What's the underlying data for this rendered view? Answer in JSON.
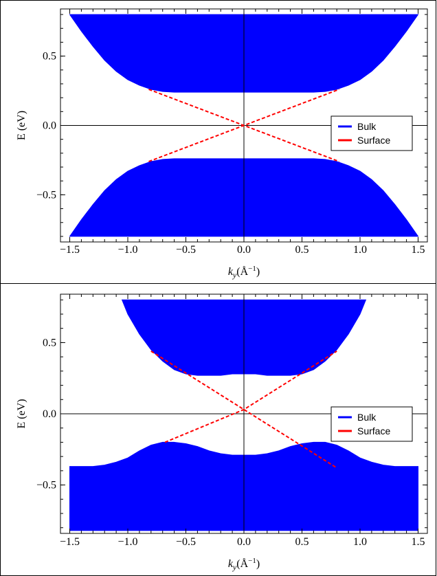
{
  "chart_data": [
    {
      "type": "area",
      "xlabel_main": "k",
      "xlabel_sub": "y",
      "xlabel_unit_open": "(Å",
      "xlabel_unit_exp": "−1",
      "xlabel_unit_close": ")",
      "ylabel": "E (eV)",
      "xlim": [
        -1.58,
        1.58
      ],
      "ylim": [
        -0.84,
        0.84
      ],
      "xticks": [
        -1.5,
        -1.0,
        -0.5,
        0.0,
        0.5,
        1.0,
        1.5
      ],
      "xtick_labels": [
        "−1.5",
        "−1.0",
        "−0.5",
        "0.0",
        "0.5",
        "1.0",
        "1.5"
      ],
      "yticks": [
        -0.5,
        0.0,
        0.5
      ],
      "ytick_labels": [
        "−0.5",
        "0.0",
        "0.5"
      ],
      "legend": {
        "position": "right",
        "entries": [
          {
            "label": "Bulk",
            "color": "#0000ff"
          },
          {
            "label": "Surface",
            "color": "#ff0000"
          }
        ]
      },
      "series": [
        {
          "name": "Bulk",
          "color": "#0000ff",
          "style": "filled",
          "x": [
            -1.5,
            -1.4,
            -1.3,
            -1.2,
            -1.1,
            -1.0,
            -0.9,
            -0.8,
            -0.7,
            -0.6,
            -0.5,
            -0.4,
            -0.3,
            -0.2,
            -0.1,
            0.0,
            0.1,
            0.2,
            0.3,
            0.4,
            0.5,
            0.6,
            0.7,
            0.8,
            0.9,
            1.0,
            1.1,
            1.2,
            1.3,
            1.4,
            1.5
          ],
          "upper_top": [
            0.8,
            0.8,
            0.8,
            0.8,
            0.8,
            0.8,
            0.8,
            0.8,
            0.8,
            0.8,
            0.8,
            0.8,
            0.8,
            0.8,
            0.8,
            0.8,
            0.8,
            0.8,
            0.8,
            0.8,
            0.8,
            0.8,
            0.8,
            0.8,
            0.8,
            0.8,
            0.8,
            0.8,
            0.8,
            0.8,
            0.8
          ],
          "upper_bottom": [
            0.8,
            0.68,
            0.57,
            0.47,
            0.39,
            0.33,
            0.29,
            0.26,
            0.245,
            0.24,
            0.24,
            0.24,
            0.24,
            0.24,
            0.24,
            0.24,
            0.24,
            0.24,
            0.24,
            0.24,
            0.24,
            0.24,
            0.245,
            0.26,
            0.29,
            0.33,
            0.39,
            0.47,
            0.57,
            0.68,
            0.8
          ],
          "lower_top": [
            -0.8,
            -0.68,
            -0.57,
            -0.47,
            -0.39,
            -0.33,
            -0.29,
            -0.26,
            -0.245,
            -0.24,
            -0.24,
            -0.24,
            -0.24,
            -0.24,
            -0.24,
            -0.24,
            -0.24,
            -0.24,
            -0.24,
            -0.24,
            -0.24,
            -0.24,
            -0.245,
            -0.26,
            -0.29,
            -0.33,
            -0.39,
            -0.47,
            -0.57,
            -0.68,
            -0.8
          ],
          "lower_bottom": [
            -0.8,
            -0.8,
            -0.8,
            -0.8,
            -0.8,
            -0.8,
            -0.8,
            -0.8,
            -0.8,
            -0.8,
            -0.8,
            -0.8,
            -0.8,
            -0.8,
            -0.8,
            -0.8,
            -0.8,
            -0.8,
            -0.8,
            -0.8,
            -0.8,
            -0.8,
            -0.8,
            -0.8,
            -0.8,
            -0.8,
            -0.8,
            -0.8,
            -0.8,
            -0.8,
            -0.8
          ]
        },
        {
          "name": "Surface",
          "color": "#ff0000",
          "style": "dashed",
          "lines": [
            {
              "x": [
                -0.82,
                0.0,
                0.82
              ],
              "y": [
                0.26,
                0.0,
                -0.26
              ]
            },
            {
              "x": [
                -0.82,
                0.0,
                0.82
              ],
              "y": [
                -0.26,
                0.0,
                0.26
              ]
            }
          ]
        }
      ]
    },
    {
      "type": "area",
      "xlabel_main": "k",
      "xlabel_sub": "y",
      "xlabel_unit_open": "(Å",
      "xlabel_unit_exp": "−1",
      "xlabel_unit_close": ")",
      "ylabel": "E (eV)",
      "xlim": [
        -1.58,
        1.58
      ],
      "ylim": [
        -0.84,
        0.84
      ],
      "xticks": [
        -1.5,
        -1.0,
        -0.5,
        0.0,
        0.5,
        1.0,
        1.5
      ],
      "xtick_labels": [
        "−1.5",
        "−1.0",
        "−0.5",
        "0.0",
        "0.5",
        "1.0",
        "1.5"
      ],
      "yticks": [
        -0.5,
        0.0,
        0.5
      ],
      "ytick_labels": [
        "−0.5",
        "0.0",
        "0.5"
      ],
      "legend": {
        "position": "right",
        "entries": [
          {
            "label": "Bulk",
            "color": "#0000ff"
          },
          {
            "label": "Surface",
            "color": "#ff0000"
          }
        ]
      },
      "series": [
        {
          "name": "Bulk",
          "color": "#0000ff",
          "style": "filled",
          "upper_x": [
            -1.05,
            -1.0,
            -0.9,
            -0.8,
            -0.7,
            -0.6,
            -0.5,
            -0.4,
            -0.3,
            -0.2,
            -0.1,
            0.0,
            0.1,
            0.2,
            0.3,
            0.4,
            0.5,
            0.6,
            0.7,
            0.8,
            0.9,
            1.0,
            1.05
          ],
          "upper_top": [
            0.8,
            0.8,
            0.8,
            0.8,
            0.8,
            0.8,
            0.8,
            0.8,
            0.8,
            0.8,
            0.8,
            0.8,
            0.8,
            0.8,
            0.8,
            0.8,
            0.8,
            0.8,
            0.8,
            0.8,
            0.8,
            0.8,
            0.8
          ],
          "upper_bottom": [
            0.8,
            0.7,
            0.56,
            0.45,
            0.37,
            0.31,
            0.28,
            0.27,
            0.27,
            0.27,
            0.28,
            0.28,
            0.28,
            0.27,
            0.27,
            0.27,
            0.28,
            0.31,
            0.37,
            0.45,
            0.56,
            0.7,
            0.8
          ],
          "lower_x": [
            -1.5,
            -1.3,
            -1.2,
            -1.1,
            -1.0,
            -0.9,
            -0.8,
            -0.7,
            -0.6,
            -0.5,
            -0.4,
            -0.3,
            -0.2,
            -0.1,
            0.0,
            0.1,
            0.2,
            0.3,
            0.4,
            0.5,
            0.6,
            0.7,
            0.8,
            0.9,
            1.0,
            1.1,
            1.2,
            1.3,
            1.5
          ],
          "lower_top": [
            -0.37,
            -0.37,
            -0.36,
            -0.34,
            -0.31,
            -0.26,
            -0.22,
            -0.2,
            -0.2,
            -0.21,
            -0.23,
            -0.26,
            -0.28,
            -0.29,
            -0.29,
            -0.29,
            -0.28,
            -0.26,
            -0.23,
            -0.21,
            -0.2,
            -0.2,
            -0.22,
            -0.26,
            -0.31,
            -0.34,
            -0.36,
            -0.37,
            -0.37
          ],
          "lower_bottom": -0.82
        },
        {
          "name": "Surface",
          "color": "#ff0000",
          "style": "dashed",
          "lines": [
            {
              "x": [
                -0.8,
                0.0,
                0.8
              ],
              "y": [
                0.44,
                0.03,
                -0.38
              ]
            },
            {
              "x": [
                -0.68,
                0.0,
                0.8
              ],
              "y": [
                -0.2,
                0.03,
                0.44
              ]
            }
          ]
        }
      ]
    }
  ]
}
